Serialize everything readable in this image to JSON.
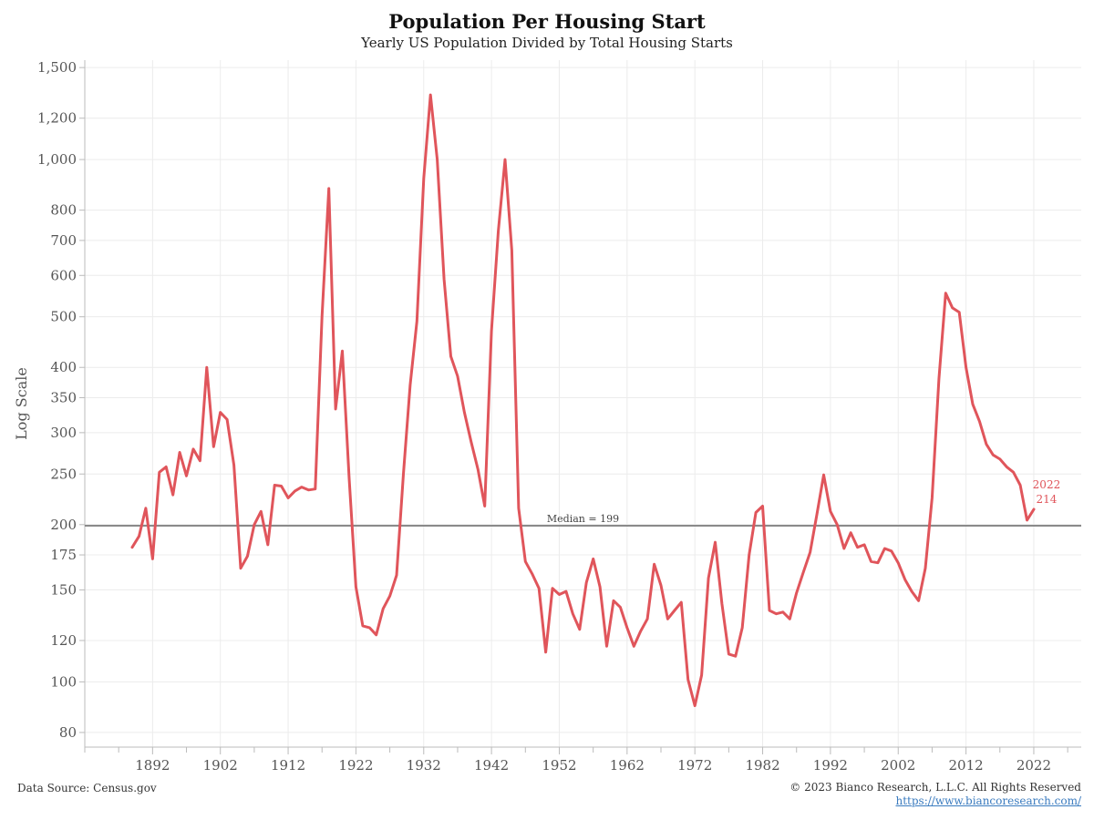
{
  "chart_data": {
    "type": "line",
    "title": "Population Per Housing Start",
    "subtitle": "Yearly US Population Divided by Total Housing Starts",
    "ylabel": "Log Scale",
    "xlabel": "",
    "y_scale": "log",
    "ylim": [
      75,
      1550
    ],
    "xlim": [
      1882,
      2029
    ],
    "y_ticks": [
      80,
      100,
      120,
      150,
      175,
      200,
      250,
      300,
      350,
      400,
      500,
      600,
      700,
      800,
      1000,
      1200,
      1500
    ],
    "y_tick_labels": [
      "80",
      "100",
      "120",
      "150",
      "175",
      "200",
      "250",
      "300",
      "350",
      "400",
      "500",
      "600",
      "700",
      "800",
      "1,000",
      "1,200",
      "1,500"
    ],
    "x_ticks": [
      1892,
      1902,
      1912,
      1922,
      1932,
      1942,
      1952,
      1962,
      1972,
      1982,
      1992,
      2002,
      2012,
      2022
    ],
    "grid": true,
    "series": [
      {
        "color": "#e0555b",
        "x": [
          1889,
          1890,
          1891,
          1892,
          1893,
          1894,
          1895,
          1896,
          1897,
          1898,
          1899,
          1900,
          1901,
          1902,
          1903,
          1904,
          1905,
          1906,
          1907,
          1908,
          1909,
          1910,
          1911,
          1912,
          1913,
          1914,
          1915,
          1916,
          1917,
          1918,
          1919,
          1920,
          1921,
          1922,
          1923,
          1924,
          1925,
          1926,
          1927,
          1928,
          1929,
          1930,
          1931,
          1932,
          1933,
          1934,
          1935,
          1936,
          1937,
          1938,
          1939,
          1940,
          1941,
          1942,
          1943,
          1944,
          1945,
          1946,
          1947,
          1948,
          1949,
          1950,
          1951,
          1952,
          1953,
          1954,
          1955,
          1956,
          1957,
          1958,
          1959,
          1960,
          1961,
          1962,
          1963,
          1964,
          1965,
          1966,
          1967,
          1968,
          1969,
          1970,
          1971,
          1972,
          1973,
          1974,
          1975,
          1976,
          1977,
          1978,
          1979,
          1980,
          1981,
          1982,
          1983,
          1984,
          1985,
          1986,
          1987,
          1988,
          1989,
          1990,
          1991,
          1992,
          1993,
          1994,
          1995,
          1996,
          1997,
          1998,
          1999,
          2000,
          2001,
          2002,
          2003,
          2004,
          2005,
          2006,
          2007,
          2008,
          2009,
          2010,
          2011,
          2012,
          2013,
          2014,
          2015,
          2016,
          2017,
          2018,
          2019,
          2020,
          2021,
          2022
        ],
        "values": [
          181,
          190,
          215,
          172,
          252,
          258,
          228,
          275,
          248,
          279,
          265,
          400,
          282,
          328,
          318,
          260,
          165,
          174,
          200,
          212,
          183,
          238,
          237,
          225,
          232,
          236,
          233,
          234,
          500,
          880,
          333,
          430,
          245,
          152,
          128,
          127,
          123,
          138,
          146,
          160,
          250,
          370,
          490,
          920,
          1330,
          1000,
          590,
          420,
          385,
          328,
          288,
          255,
          217,
          470,
          730,
          1000,
          670,
          215,
          170,
          161,
          151,
          114,
          151,
          147,
          149,
          135,
          126,
          155,
          172,
          152,
          117,
          143,
          139,
          127,
          117,
          125,
          132,
          168,
          153,
          132,
          137,
          142,
          101,
          90,
          103,
          158,
          185,
          141,
          113,
          112,
          127,
          175,
          211,
          217,
          137,
          135,
          136,
          132,
          148,
          162,
          177,
          209,
          249,
          212,
          200,
          180,
          193,
          181,
          183,
          170,
          169,
          180,
          178,
          169,
          157,
          149,
          143,
          165,
          225,
          380,
          555,
          520,
          510,
          400,
          340,
          315,
          285,
          272,
          267,
          258,
          252,
          238,
          204,
          214
        ]
      }
    ],
    "reference_line": {
      "value": 199,
      "label": "Median = 199"
    },
    "end_annotation": {
      "year": "2022",
      "value": "214"
    }
  },
  "footer": {
    "source": "Data Source: Census.gov",
    "copyright": "© 2023 Bianco Research, L.L.C. All Rights Reserved",
    "url": "https://www.biancoresearch.com/"
  }
}
